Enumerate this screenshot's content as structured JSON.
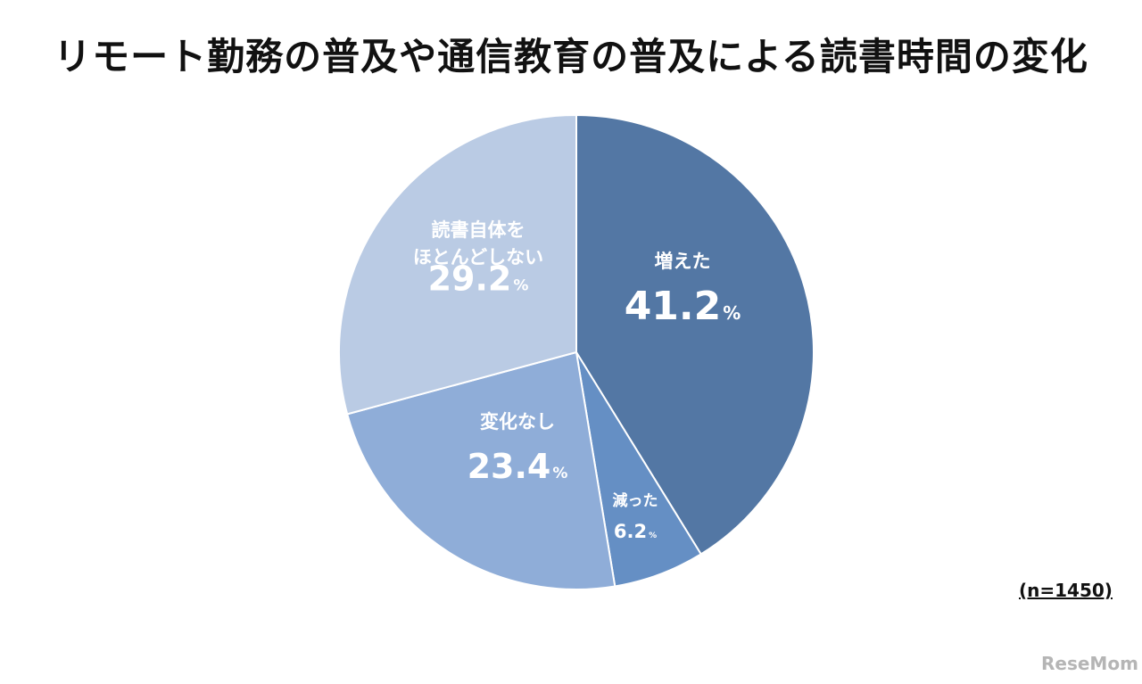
{
  "title": "リモート勤務の普及や通信教育の普及による読書時間の変化",
  "sample_note": "(n=1450)",
  "logo_text": "ReseMom",
  "chart_data": {
    "type": "pie",
    "title": "リモート勤務の普及や通信教育の普及による読書時間の変化",
    "unit": "%",
    "slices": [
      {
        "label_lines": [
          "増えた"
        ],
        "value": 41.2,
        "value_text": "41.2",
        "color": "#5377a4"
      },
      {
        "label_lines": [
          "減った"
        ],
        "value": 6.2,
        "value_text": "6.2",
        "color": "#658fc4"
      },
      {
        "label_lines": [
          "変化なし"
        ],
        "value": 23.4,
        "value_text": "23.4",
        "color": "#8fadd8"
      },
      {
        "label_lines": [
          "読書自体を",
          "ほとんどしない"
        ],
        "value": 29.2,
        "value_text": "29.2",
        "color": "#bacbe4"
      }
    ]
  }
}
